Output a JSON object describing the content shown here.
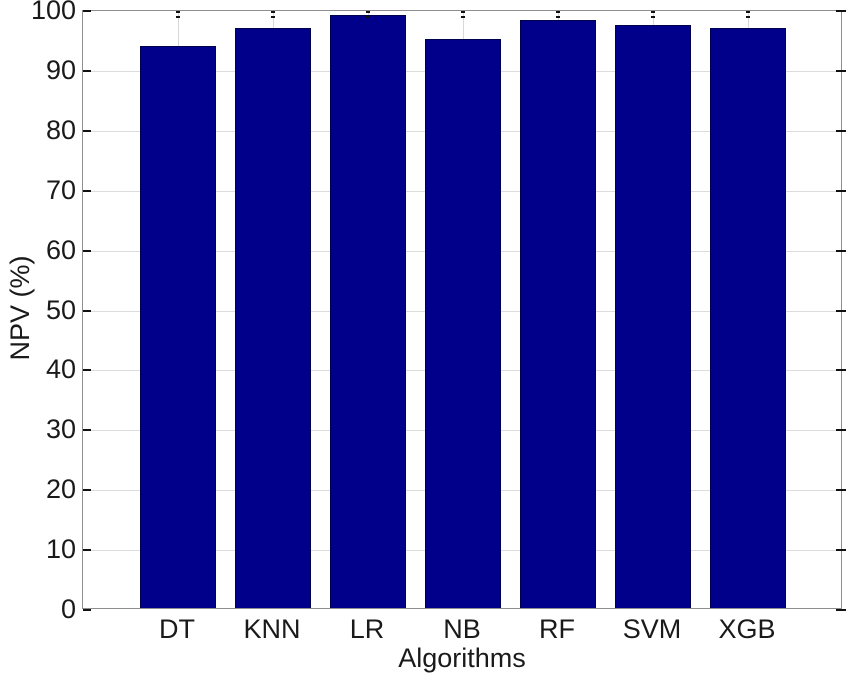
{
  "figure": {
    "background": "#ffffff"
  },
  "chart_data": {
    "type": "bar",
    "title": "",
    "xlabel": "Algorithms",
    "ylabel": "NPV (%)",
    "categories": [
      "DT",
      "KNN",
      "LR",
      "NB",
      "RF",
      "SVM",
      "XGB"
    ],
    "values": [
      94.1,
      97.1,
      99.4,
      95.3,
      98.5,
      97.7,
      97.1
    ],
    "ylim": [
      0,
      100
    ],
    "yticks": [
      0,
      10,
      20,
      30,
      40,
      50,
      60,
      70,
      80,
      90,
      100
    ],
    "grid": true,
    "legend": "none",
    "bar_width_fraction": 0.8,
    "colors": {
      "bar_fill": "#00008B",
      "bar_edge": "#000050",
      "axis_box": "#8e8e8e",
      "gridline": "#dcdcdc",
      "tick": "#111111",
      "text": "#1a1a1a"
    }
  }
}
